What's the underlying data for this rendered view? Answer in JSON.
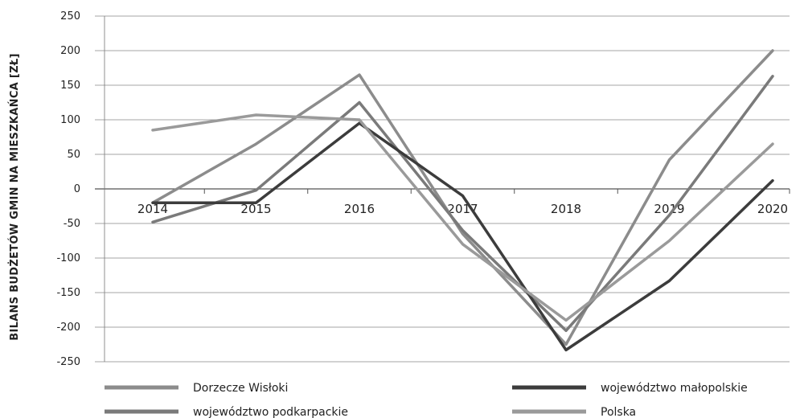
{
  "chart_data": {
    "type": "line",
    "ylabel": "BILANS BUDŻETÓW GMIN NA MIESZKAŃCA [ZŁ]",
    "xlabel": "",
    "categories": [
      "2014",
      "2015",
      "2016",
      "2017",
      "2018",
      "2019",
      "2020"
    ],
    "ylim": [
      -250,
      250
    ],
    "yticks": [
      250,
      200,
      150,
      100,
      50,
      0,
      -50,
      -100,
      -150,
      -200,
      -250
    ],
    "grid": true,
    "legend_position": "bottom",
    "series": [
      {
        "name": "Dorzecze Wisłoki",
        "color": "#8c8c8c",
        "values": [
          -20,
          65,
          165,
          -65,
          -225,
          42,
          200
        ]
      },
      {
        "name": "województwo podkarpackie",
        "color": "#7a7a7a",
        "values": [
          -48,
          -2,
          125,
          -60,
          -205,
          -38,
          163
        ]
      },
      {
        "name": "województwo małopolskie",
        "color": "#3c3c3c",
        "values": [
          -20,
          -20,
          95,
          -10,
          -233,
          -133,
          12
        ]
      },
      {
        "name": "Polska",
        "color": "#9a9a9a",
        "values": [
          85,
          107,
          100,
          -80,
          -190,
          -75,
          65
        ]
      }
    ]
  }
}
